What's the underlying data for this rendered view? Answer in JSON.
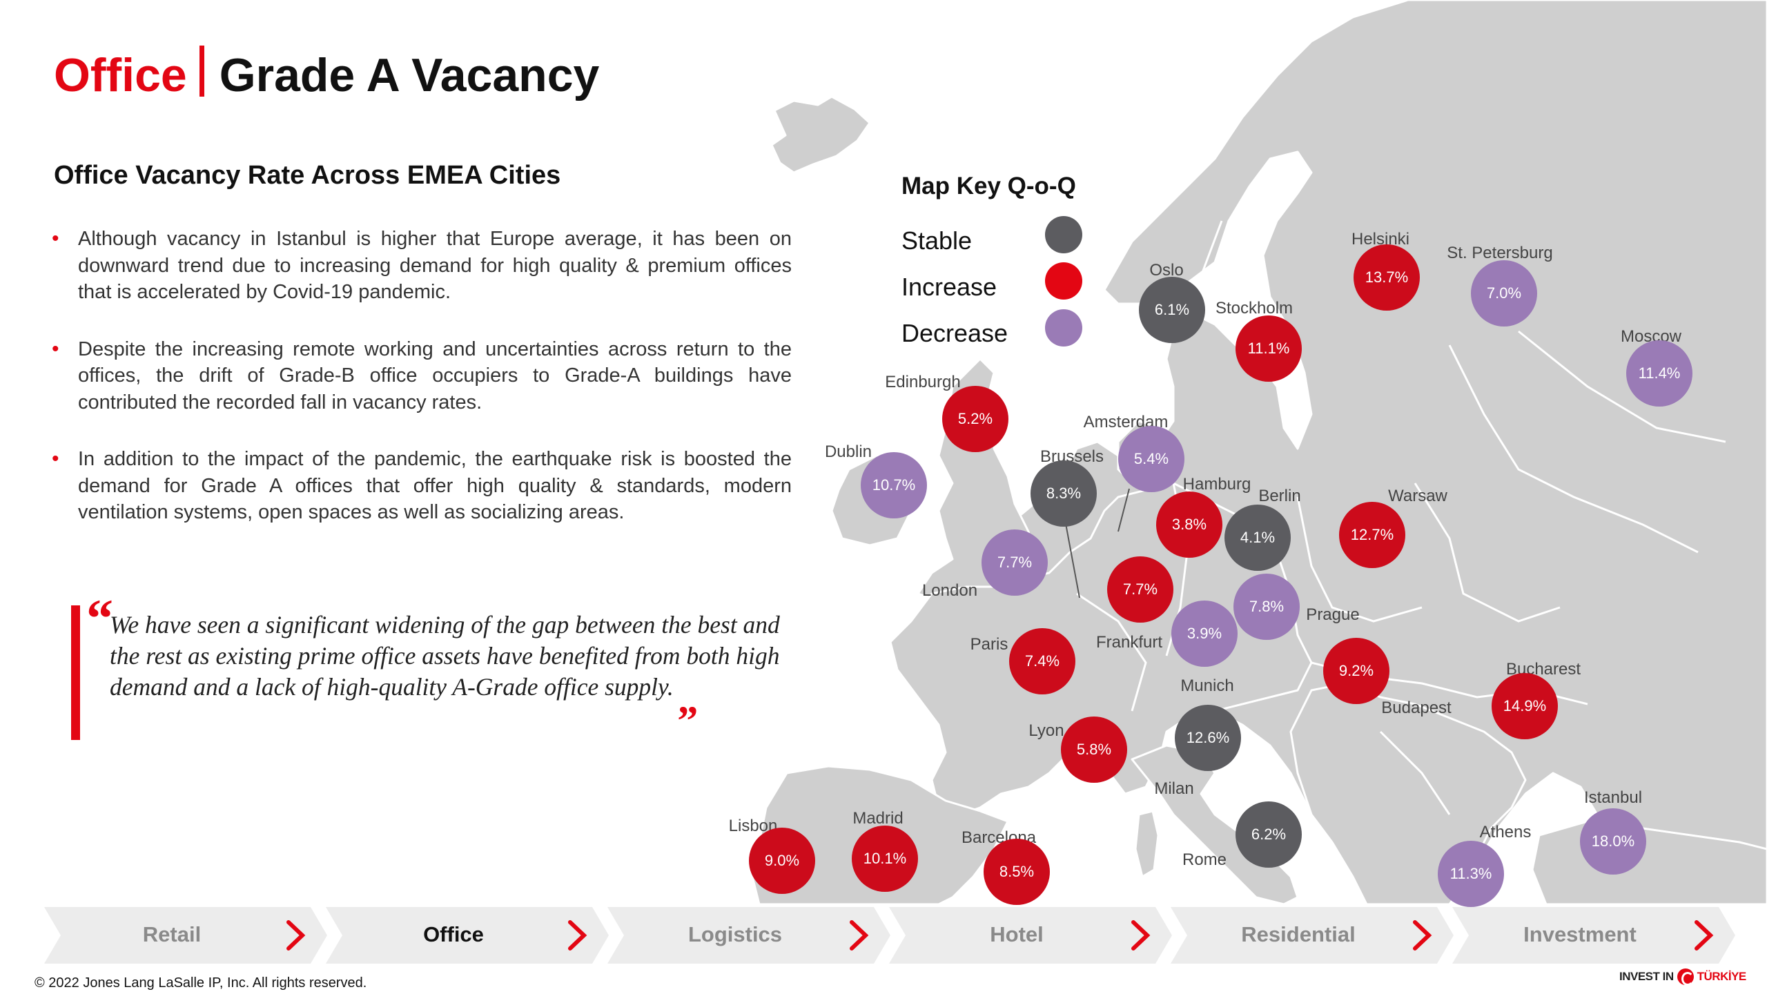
{
  "title": {
    "office": "Office",
    "main": "Grade A Vacancy"
  },
  "subtitle": "Office Vacancy Rate Across EMEA Cities",
  "bullets": [
    "Although vacancy in Istanbul is higher that Europe average, it has been on downward trend due to increasing demand for high quality & premium offices that is accelerated by Covid-19 pandemic.",
    "Despite the increasing remote working and uncertainties across return to the offices, the drift of Grade-B office occupiers to Grade-A buildings have contributed the recorded fall in vacancy rates.",
    "In addition to the impact of the pandemic, the earthquake risk is boosted the demand for Grade A offices that offer high quality & standards, modern ventilation systems, open spaces as well as socializing areas."
  ],
  "quote": {
    "open": "“",
    "text": "We have seen a significant widening of the gap between the best and the rest as existing prime office assets have benefited from both high demand and a lack of high-quality A-Grade office supply.",
    "close": "„"
  },
  "legend": {
    "title": "Map Key Q-o-Q",
    "items": [
      {
        "label": "Stable",
        "color": "#5c5c60"
      },
      {
        "label": "Increase",
        "color": "#e30613"
      },
      {
        "label": "Decrease",
        "color": "#9a7bb6"
      }
    ]
  },
  "colors": {
    "accent": "#e30613",
    "increase": "#cc0b1b",
    "decrease": "#9a7bb6",
    "stable": "#5c5c60",
    "land": "#cfcfcf"
  },
  "cities": [
    {
      "name": "Helsinki",
      "value": "13.7%",
      "trend": "increase"
    },
    {
      "name": "St. Petersburg",
      "value": "7.0%",
      "trend": "decrease"
    },
    {
      "name": "Moscow",
      "value": "11.4%",
      "trend": "decrease"
    },
    {
      "name": "Oslo",
      "value": "6.1%",
      "trend": "stable"
    },
    {
      "name": "Stockholm",
      "value": "11.1%",
      "trend": "increase"
    },
    {
      "name": "Edinburgh",
      "value": "5.2%",
      "trend": "increase"
    },
    {
      "name": "Dublin",
      "value": "10.7%",
      "trend": "decrease"
    },
    {
      "name": "Amsterdam",
      "value": "5.4%",
      "trend": "decrease"
    },
    {
      "name": "Brussels",
      "value": "8.3%",
      "trend": "stable"
    },
    {
      "name": "Hamburg",
      "value": "3.8%",
      "trend": "increase"
    },
    {
      "name": "Berlin",
      "value": "4.1%",
      "trend": "stable"
    },
    {
      "name": "Warsaw",
      "value": "12.7%",
      "trend": "increase"
    },
    {
      "name": "London",
      "value": "7.7%",
      "trend": "decrease"
    },
    {
      "name": "Frankfurt",
      "value": "7.7%",
      "trend": "increase"
    },
    {
      "name": "Prague",
      "value": "7.8%",
      "trend": "decrease"
    },
    {
      "name": "Munich",
      "value": "3.9%",
      "trend": "decrease"
    },
    {
      "name": "Paris",
      "value": "7.4%",
      "trend": "increase"
    },
    {
      "name": "Budapest",
      "value": "9.2%",
      "trend": "increase"
    },
    {
      "name": "Bucharest",
      "value": "14.9%",
      "trend": "increase"
    },
    {
      "name": "Lyon",
      "value": "5.8%",
      "trend": "increase"
    },
    {
      "name": "Milan",
      "value": "12.6%",
      "trend": "stable"
    },
    {
      "name": "Lisbon",
      "value": "9.0%",
      "trend": "increase"
    },
    {
      "name": "Madrid",
      "value": "10.1%",
      "trend": "increase"
    },
    {
      "name": "Barcelona",
      "value": "8.5%",
      "trend": "increase"
    },
    {
      "name": "Rome",
      "value": "6.2%",
      "trend": "stable"
    },
    {
      "name": "Athens",
      "value": "11.3%",
      "trend": "decrease"
    },
    {
      "name": "Istanbul",
      "value": "18.0%",
      "trend": "decrease"
    }
  ],
  "nav": {
    "items": [
      "Retail",
      "Office",
      "Logistics",
      "Hotel",
      "Residential",
      "Investment"
    ],
    "active": "Office"
  },
  "footer": {
    "copyright": "© 2022 Jones Lang LaSalle IP, Inc. All rights reserved.",
    "logo_left": "INVEST IN",
    "logo_right": "TÜRKİYE"
  }
}
